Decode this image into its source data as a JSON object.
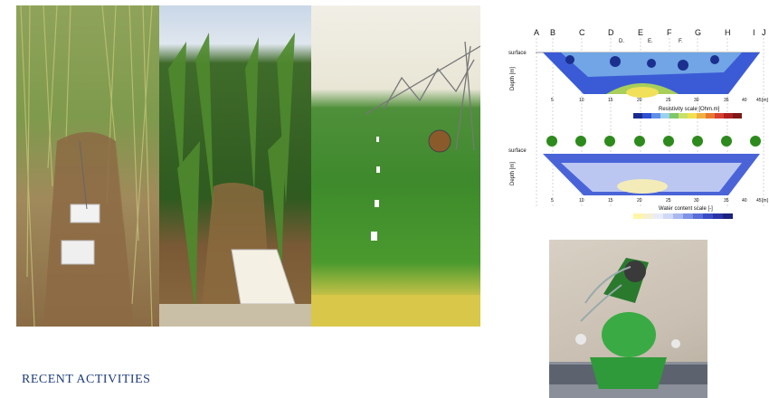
{
  "section": {
    "heading": "RECENT ACTIVITIES"
  },
  "diagram": {
    "column_letters": [
      "A",
      "B",
      "C",
      "D",
      "E",
      "F",
      "G",
      "H",
      "I",
      "J"
    ],
    "marker_labels": [
      "D.",
      "E.",
      "F."
    ],
    "surface_label": "surface",
    "depth_label": "Depth [m]",
    "resistivity_scale_label": "Resistivity scale [Ohm.m]",
    "water_scale_label": "Water content scale [-]",
    "distance_unit": "[m]",
    "distance_ticks": [
      "5",
      "10",
      "15",
      "20",
      "25",
      "30",
      "35",
      "40",
      "45"
    ]
  },
  "icons": {
    "wheat_photo": "wheat-lysimeter-photo",
    "corn_photo": "corn-furrow-irrigation-photo",
    "pivot_photo": "center-pivot-sprinkler-photo",
    "valve_photo": "green-hydraulic-valve-photo"
  }
}
